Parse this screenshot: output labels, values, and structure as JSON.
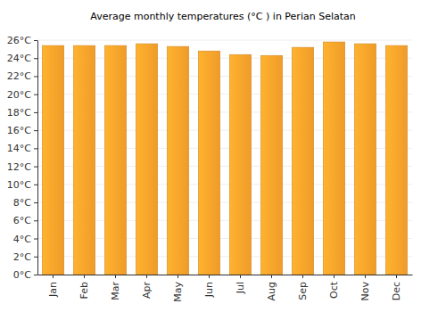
{
  "chart_data": {
    "type": "bar",
    "title": "Average monthly temperatures (°C ) in Perian Selatan",
    "categories": [
      "Jan",
      "Feb",
      "Mar",
      "Apr",
      "May",
      "Jun",
      "Jul",
      "Aug",
      "Sep",
      "Oct",
      "Nov",
      "Dec"
    ],
    "values": [
      25.4,
      25.4,
      25.4,
      25.6,
      25.3,
      24.8,
      24.4,
      24.3,
      25.2,
      25.8,
      25.6,
      25.4
    ],
    "color": "#fca42b",
    "ylim": [
      0,
      26
    ],
    "yticks": [
      {
        "value": 0,
        "label": "0°C"
      },
      {
        "value": 2,
        "label": "2°C"
      },
      {
        "value": 4,
        "label": "4°C"
      },
      {
        "value": 6,
        "label": "6°C"
      },
      {
        "value": 8,
        "label": "8°C"
      },
      {
        "value": 10,
        "label": "10°C"
      },
      {
        "value": 12,
        "label": "12°C"
      },
      {
        "value": 14,
        "label": "14°C"
      },
      {
        "value": 16,
        "label": "16°C"
      },
      {
        "value": 18,
        "label": "18°C"
      },
      {
        "value": 20,
        "label": "20°C"
      },
      {
        "value": 22,
        "label": "22°C"
      },
      {
        "value": 24,
        "label": "24°C"
      },
      {
        "value": 26,
        "label": "26°C"
      }
    ],
    "grid": true
  }
}
